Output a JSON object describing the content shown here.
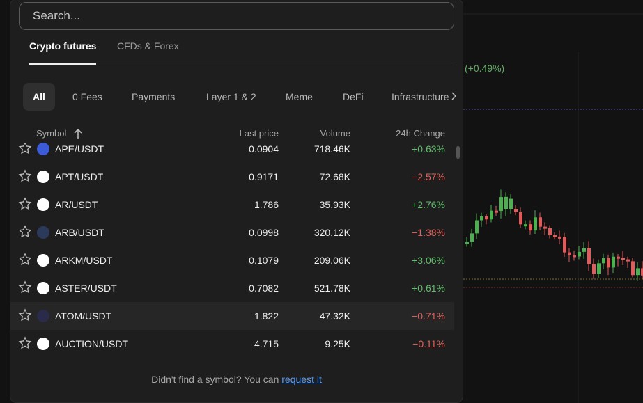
{
  "background": {
    "change": "(+0.49%)"
  },
  "search": {
    "placeholder": "Search..."
  },
  "tabs": [
    "Crypto futures",
    "CFDs & Forex"
  ],
  "filters": [
    "All",
    "0 Fees",
    "Payments",
    "Layer 1 & 2",
    "Meme",
    "DeFi",
    "Infrastructure"
  ],
  "table": {
    "columns": [
      "Symbol",
      "Last price",
      "Volume",
      "24h Change"
    ],
    "rows": [
      {
        "symbol": "APE/USDT",
        "last_price": "0.0904",
        "volume": "718.46K",
        "change": "+0.63%"
      },
      {
        "symbol": "APT/USDT",
        "last_price": "0.9171",
        "volume": "72.68K",
        "change": "−2.57%"
      },
      {
        "symbol": "AR/USDT",
        "last_price": "1.786",
        "volume": "35.93K",
        "change": "+2.76%"
      },
      {
        "symbol": "ARB/USDT",
        "last_price": "0.0998",
        "volume": "320.12K",
        "change": "−1.38%"
      },
      {
        "symbol": "ARKM/USDT",
        "last_price": "0.1079",
        "volume": "209.06K",
        "change": "+3.06%"
      },
      {
        "symbol": "ASTER/USDT",
        "last_price": "0.7082",
        "volume": "521.78K",
        "change": "+0.61%"
      },
      {
        "symbol": "ATOM/USDT",
        "last_price": "1.822",
        "volume": "47.32K",
        "change": "−0.71%"
      },
      {
        "symbol": "AUCTION/USDT",
        "last_price": "4.715",
        "volume": "9.25K",
        "change": "−0.11%"
      }
    ]
  },
  "footer": {
    "text": "Didn't find a symbol? You can",
    "link": "request it"
  }
}
